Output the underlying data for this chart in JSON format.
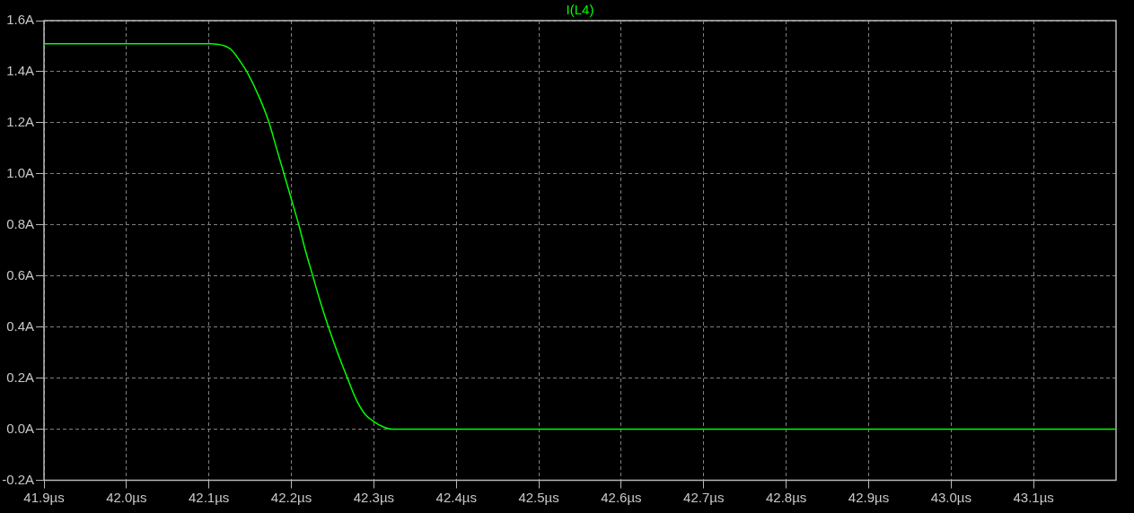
{
  "chart_data": {
    "type": "line",
    "x": [
      41.9,
      42.1,
      42.12,
      42.129,
      42.138,
      42.146,
      42.161,
      42.173,
      42.182,
      42.191,
      42.2,
      42.209,
      42.217,
      42.226,
      42.235,
      42.245,
      42.256,
      42.268,
      42.278,
      42.289,
      42.3,
      42.311,
      42.322,
      43.2
    ],
    "series": [
      {
        "name": "I(L4)",
        "color": "#00ff00",
        "values": [
          1.51,
          1.51,
          1.5,
          1.48,
          1.44,
          1.4,
          1.3,
          1.2,
          1.1,
          1.0,
          0.9,
          0.8,
          0.7,
          0.6,
          0.5,
          0.4,
          0.3,
          0.2,
          0.12,
          0.06,
          0.03,
          0.01,
          0.0,
          0.0
        ]
      }
    ],
    "xlim": [
      41.9,
      43.2
    ],
    "xticks": [
      {
        "value": 41.9,
        "label": "41.9µs"
      },
      {
        "value": 42.0,
        "label": "42.0µs"
      },
      {
        "value": 42.1,
        "label": "42.1µs"
      },
      {
        "value": 42.2,
        "label": "42.2µs"
      },
      {
        "value": 42.3,
        "label": "42.3µs"
      },
      {
        "value": 42.4,
        "label": "42.4µs"
      },
      {
        "value": 42.5,
        "label": "42.5µs"
      },
      {
        "value": 42.6,
        "label": "42.6µs"
      },
      {
        "value": 42.7,
        "label": "42.7µs"
      },
      {
        "value": 42.8,
        "label": "42.8µs"
      },
      {
        "value": 42.9,
        "label": "42.9µs"
      },
      {
        "value": 43.0,
        "label": "43.0µs"
      },
      {
        "value": 43.1,
        "label": "43.1µs"
      }
    ],
    "ylim": [
      -0.2,
      1.6
    ],
    "yticks": [
      {
        "value": -0.2,
        "label": "-0.2A"
      },
      {
        "value": 0.0,
        "label": "0.0A"
      },
      {
        "value": 0.2,
        "label": "0.2A"
      },
      {
        "value": 0.4,
        "label": "0.4A"
      },
      {
        "value": 0.6,
        "label": "0.6A"
      },
      {
        "value": 0.8,
        "label": "0.8A"
      },
      {
        "value": 1.0,
        "label": "1.0A"
      },
      {
        "value": 1.2,
        "label": "1.2A"
      },
      {
        "value": 1.4,
        "label": "1.4A"
      },
      {
        "value": 1.6,
        "label": "1.6A"
      }
    ],
    "grid": true,
    "legend": "top"
  }
}
